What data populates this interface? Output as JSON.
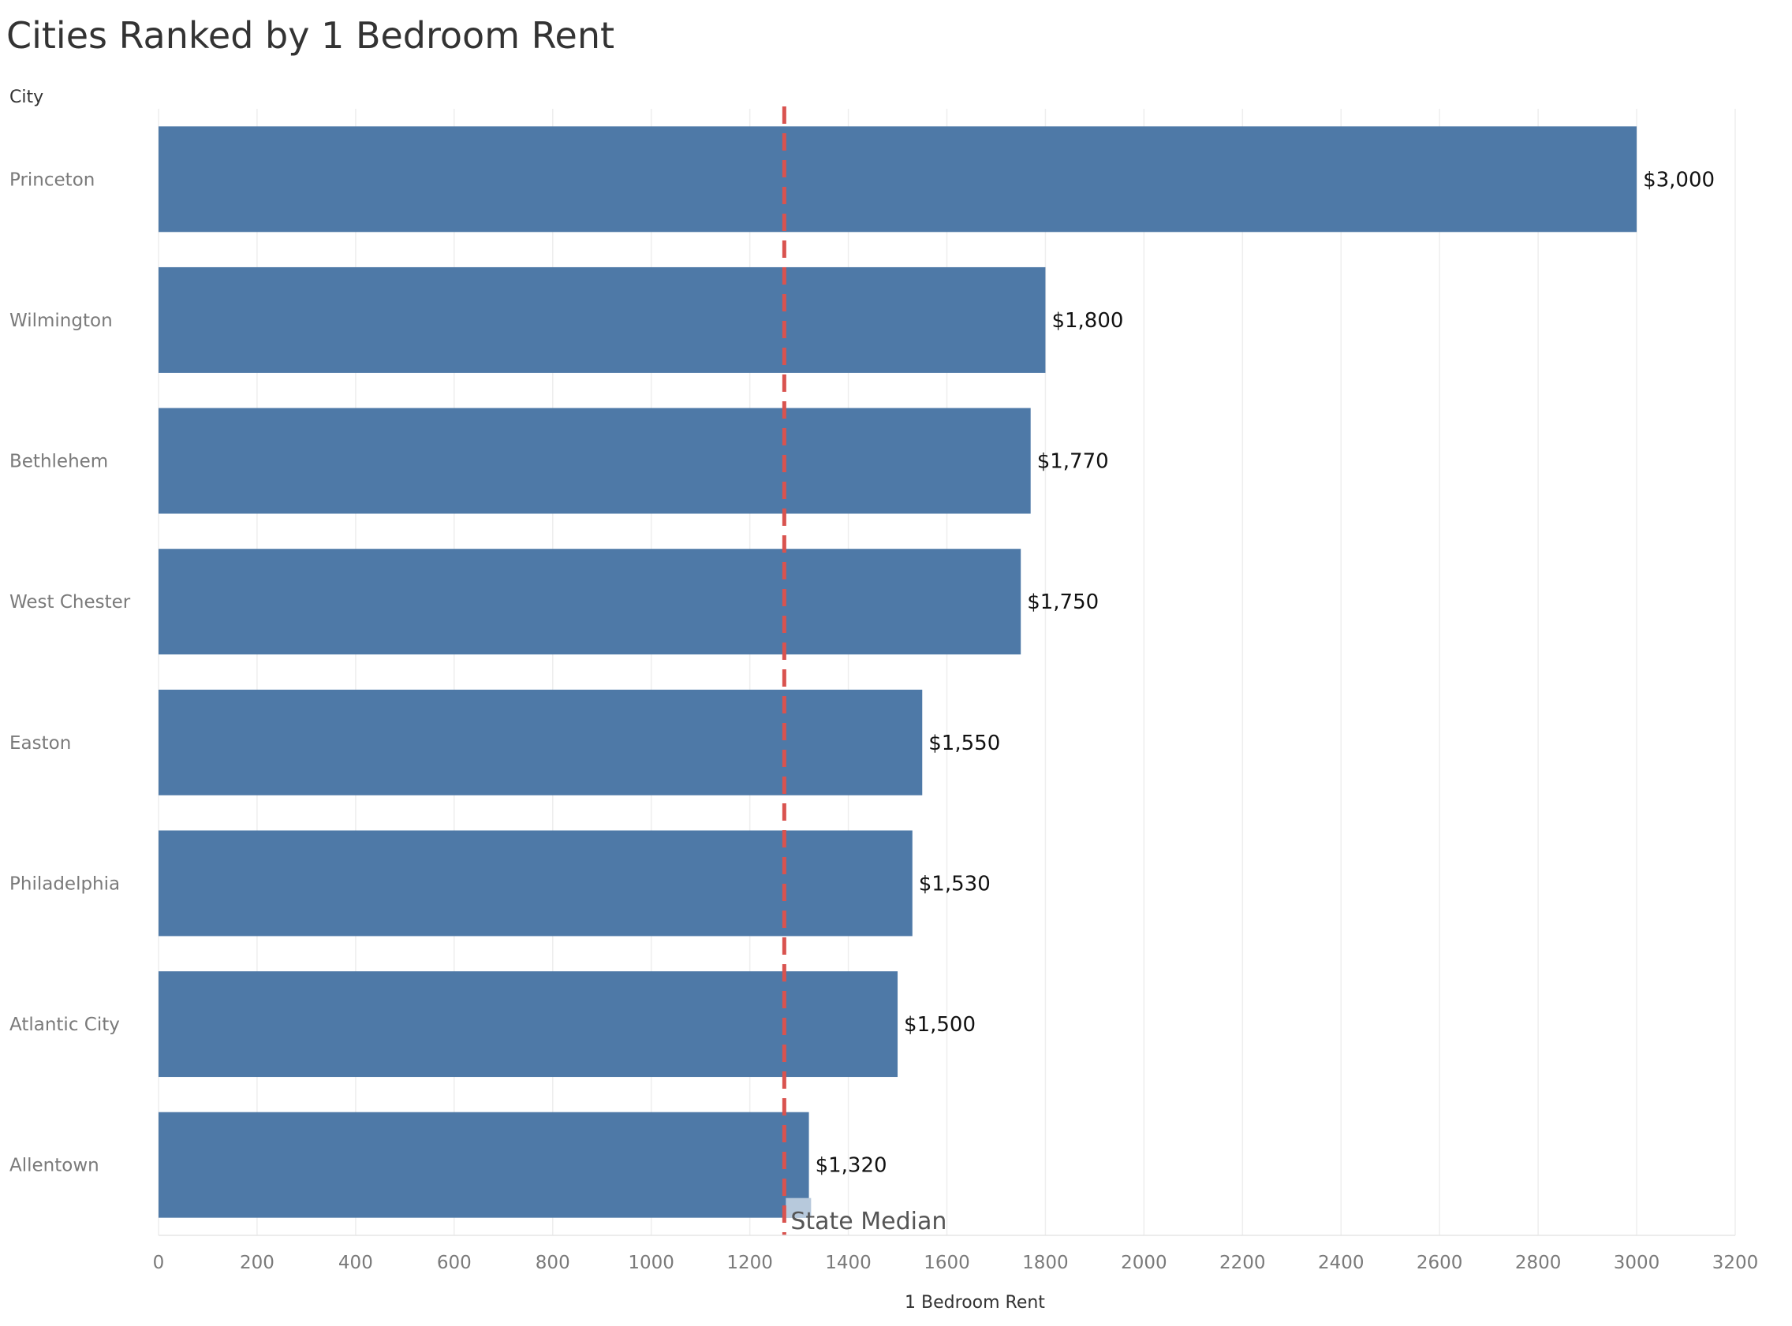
{
  "chart_data": {
    "type": "bar",
    "orientation": "horizontal",
    "title": "Cities Ranked by 1 Bedroom Rent",
    "ylabel": "City",
    "xlabel": "1 Bedroom Rent",
    "categories": [
      "Princeton",
      "Wilmington",
      "Bethlehem",
      "West Chester",
      "Easton",
      "Philadelphia",
      "Atlantic City",
      "Allentown"
    ],
    "values": [
      3000,
      1800,
      1770,
      1750,
      1550,
      1530,
      1500,
      1320
    ],
    "value_labels": [
      "$3,000",
      "$1,800",
      "$1,770",
      "$1,750",
      "$1,550",
      "$1,530",
      "$1,500",
      "$1,320"
    ],
    "xlim": [
      0,
      3200
    ],
    "xticks": [
      0,
      200,
      400,
      600,
      800,
      1000,
      1200,
      1400,
      1600,
      1800,
      2000,
      2200,
      2400,
      2600,
      2800,
      3000,
      3200
    ],
    "grid": true,
    "reference_line": {
      "label": "State Median",
      "value": 1270,
      "style": "dashed"
    },
    "colors": {
      "bar": "#4e79a7",
      "reference_line": "#d9534f",
      "grid": "#eeeeee",
      "reference_label_bg": "#b7c9dc"
    }
  }
}
